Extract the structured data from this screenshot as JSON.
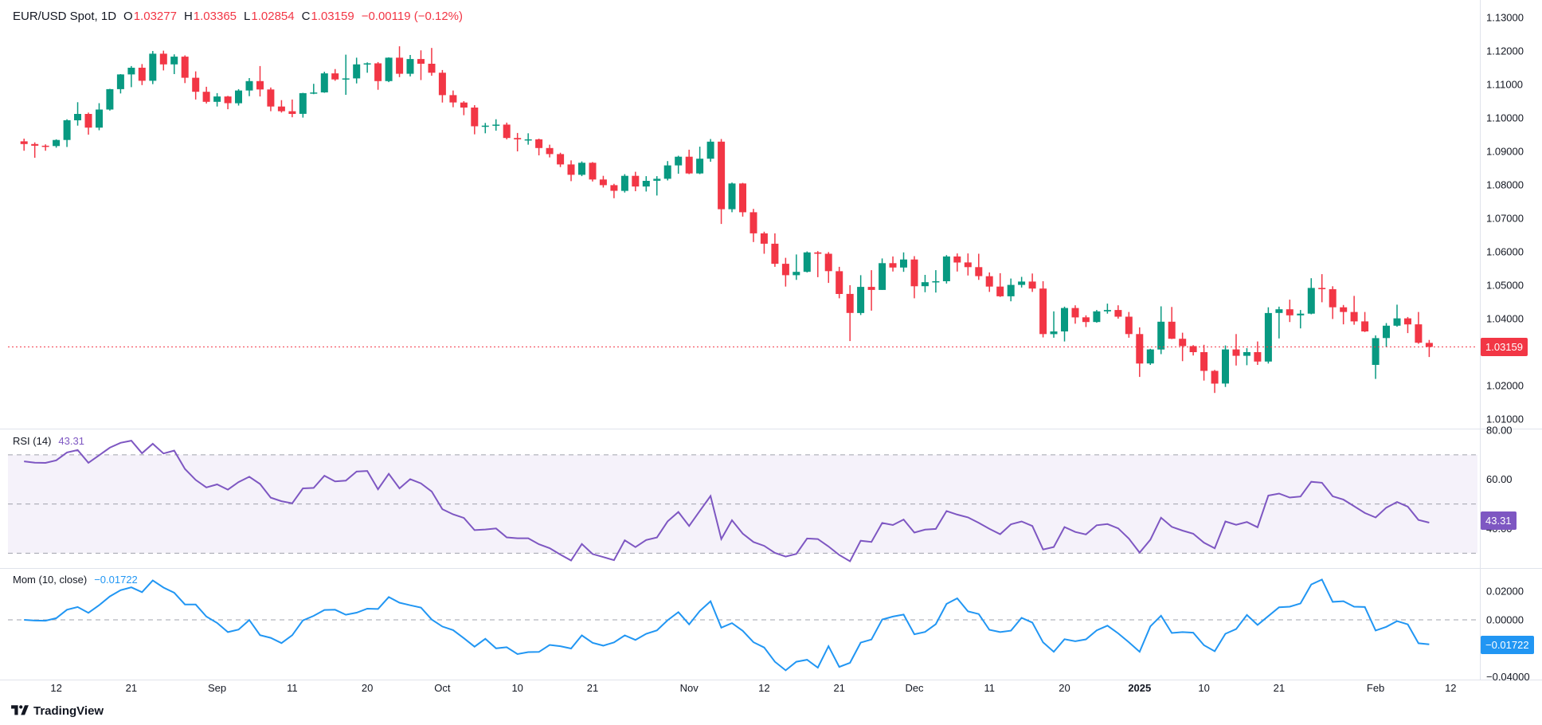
{
  "legend": {
    "symbol": "EUR/USD Spot, 1D",
    "o_label": "O",
    "o": "1.03277",
    "h_label": "H",
    "h": "1.03365",
    "l_label": "L",
    "l": "1.02854",
    "c_label": "C",
    "c": "1.03159",
    "change": "−0.00119 (−0.12%)"
  },
  "rsi_legend": {
    "name": "RSI (14)",
    "value": "43.31"
  },
  "mom_legend": {
    "name": "Mom (10, close)",
    "value": "−0.01722"
  },
  "badges": {
    "price": "1.03159",
    "price_v": 1.03159,
    "rsi": "43.31",
    "rsi_v": 43.31,
    "mom": "−0.01722",
    "mom_v": -0.01722
  },
  "watermark": "TradingView",
  "colors": {
    "up": "#089981",
    "down": "#F23645",
    "rsi": "#7E57C2",
    "rsi_band": "rgba(126,87,194,0.08)",
    "mom": "#2196F3",
    "dash": "#A0A3AD",
    "sep": "#E0E3EB",
    "text": "#131722"
  },
  "chart_data": {
    "type": "candlestick",
    "title": "EUR/USD Spot, 1D",
    "symbol": "EUR/USD Spot",
    "timeframe": "1D",
    "price_axis_range": [
      1.01,
      1.13
    ],
    "last": {
      "o": 1.03277,
      "h": 1.03365,
      "l": 1.02854,
      "c": 1.03159,
      "change": -0.00119,
      "change_pct": -0.12
    },
    "indicators": {
      "rsi_period": 14,
      "rsi_last": 43.31,
      "rsi_band": [
        30,
        70
      ],
      "rsi_guides": [
        70,
        50,
        30
      ],
      "mom_period": 10,
      "mom_last": -0.01722
    },
    "axes": {
      "price_ticks": [
        {
          "v": 1.13,
          "label": "1.13000"
        },
        {
          "v": 1.12,
          "label": "1.12000"
        },
        {
          "v": 1.11,
          "label": "1.11000"
        },
        {
          "v": 1.1,
          "label": "1.10000"
        },
        {
          "v": 1.09,
          "label": "1.09000"
        },
        {
          "v": 1.08,
          "label": "1.08000"
        },
        {
          "v": 1.07,
          "label": "1.07000"
        },
        {
          "v": 1.06,
          "label": "1.06000"
        },
        {
          "v": 1.05,
          "label": "1.05000"
        },
        {
          "v": 1.04,
          "label": "1.04000"
        },
        {
          "v": 1.03,
          "label": "1.03000"
        },
        {
          "v": 1.02,
          "label": "1.02000"
        },
        {
          "v": 1.01,
          "label": "1.01000"
        }
      ],
      "rsi_ticks": [
        {
          "v": 80,
          "label": "80.00"
        },
        {
          "v": 60,
          "label": "60.00"
        },
        {
          "v": 40,
          "label": "40.00"
        }
      ],
      "mom_ticks": [
        {
          "v": 0.02,
          "label": "0.02000"
        },
        {
          "v": 0,
          "label": "0.00000"
        },
        {
          "v": -0.04,
          "label": "−0.04000"
        }
      ],
      "time_ticks": [
        {
          "i": 3,
          "label": "12"
        },
        {
          "i": 10,
          "label": "21"
        },
        {
          "i": 18,
          "label": "Sep"
        },
        {
          "i": 25,
          "label": "11"
        },
        {
          "i": 32,
          "label": "20"
        },
        {
          "i": 39,
          "label": "Oct"
        },
        {
          "i": 46,
          "label": "10"
        },
        {
          "i": 53,
          "label": "21"
        },
        {
          "i": 62,
          "label": "Nov"
        },
        {
          "i": 69,
          "label": "12"
        },
        {
          "i": 76,
          "label": "21"
        },
        {
          "i": 83,
          "label": "Dec"
        },
        {
          "i": 90,
          "label": "11"
        },
        {
          "i": 97,
          "label": "20"
        },
        {
          "i": 104,
          "label": "2025",
          "bold": true
        },
        {
          "i": 110,
          "label": "10"
        },
        {
          "i": 117,
          "label": "21"
        },
        {
          "i": 126,
          "label": "Feb"
        },
        {
          "i": 133,
          "label": "12"
        }
      ]
    },
    "candles": [
      [
        1.093,
        1.0938,
        1.0902,
        1.0922
      ],
      [
        1.0922,
        1.0927,
        1.0881,
        1.0917
      ],
      [
        1.0917,
        1.0921,
        1.0902,
        1.0916
      ],
      [
        1.0916,
        1.0936,
        1.0911,
        1.0934
      ],
      [
        1.0934,
        1.0996,
        1.0913,
        1.0993
      ],
      [
        1.0993,
        1.1047,
        1.0977,
        1.1012
      ],
      [
        1.1012,
        1.1016,
        1.095,
        1.0971
      ],
      [
        1.0971,
        1.1044,
        1.0963,
        1.1025
      ],
      [
        1.1025,
        1.1087,
        1.1022,
        1.1086
      ],
      [
        1.1086,
        1.1131,
        1.1073,
        1.113
      ],
      [
        1.113,
        1.1155,
        1.1092,
        1.115
      ],
      [
        1.115,
        1.1161,
        1.1098,
        1.1111
      ],
      [
        1.1111,
        1.12,
        1.1101,
        1.1192
      ],
      [
        1.1192,
        1.1201,
        1.1142,
        1.116
      ],
      [
        1.116,
        1.119,
        1.1131,
        1.1183
      ],
      [
        1.1183,
        1.1187,
        1.1104,
        1.112
      ],
      [
        1.112,
        1.1139,
        1.1055,
        1.1078
      ],
      [
        1.1078,
        1.1093,
        1.1043,
        1.1048
      ],
      [
        1.1048,
        1.1074,
        1.1034,
        1.1064
      ],
      [
        1.1064,
        1.1066,
        1.1026,
        1.1044
      ],
      [
        1.1044,
        1.1086,
        1.1037,
        1.1082
      ],
      [
        1.1082,
        1.1119,
        1.1065,
        1.111
      ],
      [
        1.111,
        1.1155,
        1.1064,
        1.1085
      ],
      [
        1.1085,
        1.1091,
        1.102,
        1.1034
      ],
      [
        1.1034,
        1.1053,
        1.1016,
        1.102
      ],
      [
        1.102,
        1.1055,
        1.1002,
        1.1012
      ],
      [
        1.1012,
        1.1075,
        1.1001,
        1.1074
      ],
      [
        1.1074,
        1.1102,
        1.1071,
        1.1076
      ],
      [
        1.1076,
        1.1138,
        1.1075,
        1.1133
      ],
      [
        1.1133,
        1.1146,
        1.1111,
        1.1115
      ],
      [
        1.1115,
        1.1189,
        1.1069,
        1.1118
      ],
      [
        1.1118,
        1.118,
        1.1103,
        1.116
      ],
      [
        1.116,
        1.1166,
        1.1135,
        1.1163
      ],
      [
        1.1163,
        1.1167,
        1.1084,
        1.111
      ],
      [
        1.111,
        1.1181,
        1.1107,
        1.118
      ],
      [
        1.118,
        1.1214,
        1.1122,
        1.1132
      ],
      [
        1.1132,
        1.1188,
        1.1124,
        1.1176
      ],
      [
        1.1176,
        1.1202,
        1.1113,
        1.1162
      ],
      [
        1.1162,
        1.1209,
        1.1126,
        1.1135
      ],
      [
        1.1135,
        1.1143,
        1.1046,
        1.1068
      ],
      [
        1.1068,
        1.1082,
        1.1032,
        1.1046
      ],
      [
        1.1046,
        1.105,
        1.1008,
        1.1031
      ],
      [
        1.1031,
        1.1038,
        1.0951,
        1.0975
      ],
      [
        1.0975,
        1.0985,
        1.0954,
        1.0977
      ],
      [
        1.0977,
        1.0996,
        1.0962,
        1.098
      ],
      [
        1.098,
        1.0986,
        1.0936,
        1.094
      ],
      [
        1.094,
        1.0955,
        1.09,
        1.0936
      ],
      [
        1.0936,
        1.0954,
        1.092,
        1.0936
      ],
      [
        1.0936,
        1.0938,
        1.0888,
        1.091
      ],
      [
        1.091,
        1.092,
        1.0882,
        1.0892
      ],
      [
        1.0892,
        1.0896,
        1.0853,
        1.0861
      ],
      [
        1.0861,
        1.0873,
        1.0811,
        1.083
      ],
      [
        1.083,
        1.087,
        1.0826,
        1.0866
      ],
      [
        1.0866,
        1.0868,
        1.081,
        1.0816
      ],
      [
        1.0816,
        1.0827,
        1.0792,
        1.0799
      ],
      [
        1.0799,
        1.0803,
        1.076,
        1.0782
      ],
      [
        1.0782,
        1.0832,
        1.0777,
        1.0827
      ],
      [
        1.0827,
        1.0839,
        1.0781,
        1.0795
      ],
      [
        1.0795,
        1.0826,
        1.078,
        1.0812
      ],
      [
        1.0812,
        1.0826,
        1.0768,
        1.0818
      ],
      [
        1.0818,
        1.0871,
        1.0813,
        1.0858
      ],
      [
        1.0858,
        1.0887,
        1.0833,
        1.0884
      ],
      [
        1.0884,
        1.0905,
        1.0832,
        1.0834
      ],
      [
        1.0834,
        1.0914,
        1.0832,
        1.0878
      ],
      [
        1.0878,
        1.0937,
        1.0869,
        1.0929
      ],
      [
        1.0929,
        1.0937,
        1.0683,
        1.0727
      ],
      [
        1.0727,
        1.0807,
        1.0718,
        1.0804
      ],
      [
        1.0804,
        1.0806,
        1.0705,
        1.0718
      ],
      [
        1.0718,
        1.0728,
        1.0629,
        1.0655
      ],
      [
        1.0655,
        1.066,
        1.0594,
        1.0624
      ],
      [
        1.0624,
        1.0655,
        1.0555,
        1.0564
      ],
      [
        1.0564,
        1.0582,
        1.0496,
        1.053
      ],
      [
        1.053,
        1.0592,
        1.0516,
        1.054
      ],
      [
        1.054,
        1.0601,
        1.0538,
        1.0598
      ],
      [
        1.0598,
        1.0602,
        1.0524,
        1.0594
      ],
      [
        1.0594,
        1.0599,
        1.0507,
        1.0542
      ],
      [
        1.0542,
        1.0555,
        1.0461,
        1.0474
      ],
      [
        1.0474,
        1.05,
        1.0333,
        1.0417
      ],
      [
        1.0417,
        1.053,
        1.0411,
        1.0495
      ],
      [
        1.0495,
        1.0545,
        1.0424,
        1.0486
      ],
      [
        1.0486,
        1.058,
        1.0486,
        1.0566
      ],
      [
        1.0566,
        1.0586,
        1.0541,
        1.0553
      ],
      [
        1.0553,
        1.0598,
        1.054,
        1.0577
      ],
      [
        1.0577,
        1.0587,
        1.0461,
        1.0497
      ],
      [
        1.0497,
        1.0531,
        1.0479,
        1.0509
      ],
      [
        1.0509,
        1.0545,
        1.0478,
        1.0512
      ],
      [
        1.0512,
        1.059,
        1.0505,
        1.0586
      ],
      [
        1.0586,
        1.0595,
        1.0541,
        1.0568
      ],
      [
        1.0568,
        1.0595,
        1.0529,
        1.0554
      ],
      [
        1.0554,
        1.0594,
        1.0516,
        1.0527
      ],
      [
        1.0527,
        1.0538,
        1.048,
        1.0496
      ],
      [
        1.0496,
        1.0536,
        1.0465,
        1.0467
      ],
      [
        1.0467,
        1.052,
        1.0452,
        1.0501
      ],
      [
        1.0501,
        1.0525,
        1.0493,
        1.0511
      ],
      [
        1.0511,
        1.0535,
        1.048,
        1.049
      ],
      [
        1.049,
        1.0512,
        1.0344,
        1.0354
      ],
      [
        1.0354,
        1.0422,
        1.0343,
        1.0362
      ],
      [
        1.0362,
        1.0436,
        1.0332,
        1.0432
      ],
      [
        1.0432,
        1.044,
        1.0385,
        1.0404
      ],
      [
        1.0404,
        1.041,
        1.0375,
        1.039
      ],
      [
        1.039,
        1.0426,
        1.0388,
        1.0422
      ],
      [
        1.0422,
        1.0445,
        1.0415,
        1.0426
      ],
      [
        1.0426,
        1.044,
        1.04,
        1.0406
      ],
      [
        1.0406,
        1.042,
        1.0343,
        1.0354
      ],
      [
        1.0354,
        1.0374,
        1.0226,
        1.0266
      ],
      [
        1.0266,
        1.031,
        1.0262,
        1.0308
      ],
      [
        1.0308,
        1.0437,
        1.0294,
        1.0391
      ],
      [
        1.0391,
        1.0435,
        1.0339,
        1.034
      ],
      [
        1.034,
        1.0358,
        1.0273,
        1.0318
      ],
      [
        1.0318,
        1.0321,
        1.029,
        1.03
      ],
      [
        1.03,
        1.0322,
        1.0215,
        1.0244
      ],
      [
        1.0244,
        1.0247,
        1.0178,
        1.0206
      ],
      [
        1.0206,
        1.032,
        1.0196,
        1.0308
      ],
      [
        1.0308,
        1.0354,
        1.026,
        1.0289
      ],
      [
        1.0289,
        1.0312,
        1.0261,
        1.03
      ],
      [
        1.03,
        1.0332,
        1.0262,
        1.0272
      ],
      [
        1.0272,
        1.0434,
        1.0266,
        1.0417
      ],
      [
        1.0417,
        1.0436,
        1.0341,
        1.0428
      ],
      [
        1.0428,
        1.0457,
        1.039,
        1.041
      ],
      [
        1.041,
        1.0426,
        1.0371,
        1.0415
      ],
      [
        1.0415,
        1.0521,
        1.0413,
        1.0492
      ],
      [
        1.0492,
        1.0533,
        1.0449,
        1.04881
      ],
      [
        1.04881,
        1.0497,
        1.0399,
        1.0434
      ],
      [
        1.0434,
        1.0441,
        1.0383,
        1.042
      ],
      [
        1.042,
        1.0468,
        1.0382,
        1.0392
      ],
      [
        1.0392,
        1.042,
        1.036,
        1.0362
      ],
      [
        1.0262,
        1.035,
        1.022,
        1.0342
      ],
      [
        1.0342,
        1.0387,
        1.0315,
        1.0379
      ],
      [
        1.0379,
        1.0442,
        1.0376,
        1.0401
      ],
      [
        1.0401,
        1.0405,
        1.0357,
        1.0383
      ],
      [
        1.0383,
        1.042,
        1.0325,
        1.0328
      ],
      [
        1.03277,
        1.03365,
        1.02854,
        1.03159
      ]
    ]
  }
}
